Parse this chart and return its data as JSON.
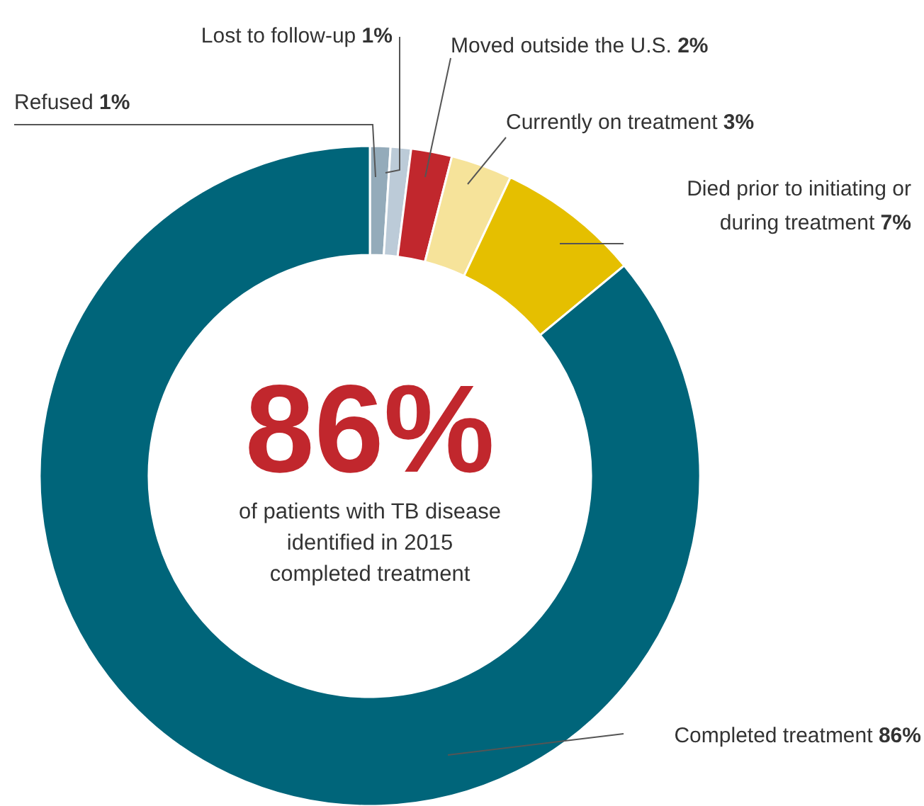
{
  "chart_data": {
    "type": "donut",
    "categories": [
      "Refused",
      "Lost to follow-up",
      "Moved outside the U.S.",
      "Currently on treatment",
      "Died prior to initiating or during treatment",
      "Completed treatment"
    ],
    "values": [
      1,
      1,
      2,
      3,
      7,
      86
    ],
    "colors": [
      "#94abba",
      "#bccbd8",
      "#c1272d",
      "#f6e39a",
      "#e5bf00",
      "#00657a"
    ],
    "value_labels": [
      "1%",
      "1%",
      "2%",
      "3%",
      "7%",
      "86%"
    ],
    "annotations": [
      "86%",
      "of patients with TB disease",
      "identified in 2015",
      "completed treatment"
    ]
  }
}
